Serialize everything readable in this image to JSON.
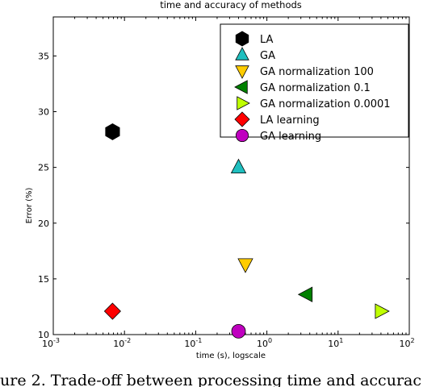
{
  "chart_data": {
    "type": "scatter",
    "title": "time and accuracy of methods",
    "xlabel": "time (s), logscale",
    "ylabel": "Error (%)",
    "xscale": "log",
    "xlim": [
      0.001,
      100
    ],
    "ylim": [
      10,
      38.5
    ],
    "grid": false,
    "legend_position": "top-right",
    "x_ticks": [
      {
        "value": 0.001,
        "base": "10",
        "exp": "-3"
      },
      {
        "value": 0.01,
        "base": "10",
        "exp": "-2"
      },
      {
        "value": 0.1,
        "base": "10",
        "exp": "-1"
      },
      {
        "value": 1,
        "base": "10",
        "exp": "0"
      },
      {
        "value": 10,
        "base": "10",
        "exp": "1"
      },
      {
        "value": 100,
        "base": "10",
        "exp": "2"
      }
    ],
    "y_ticks": [
      10,
      15,
      20,
      25,
      30,
      35
    ],
    "series": [
      {
        "name": "LA",
        "marker": "hexagon",
        "color": "#000000",
        "x": 0.0068,
        "y": 28.2
      },
      {
        "name": "GA",
        "marker": "triangle-up",
        "color": "#1fbfbf",
        "x": 0.4,
        "y": 25.0
      },
      {
        "name": "GA normalization 100",
        "marker": "triangle-down",
        "color": "#ffcc00",
        "x": 0.5,
        "y": 16.3
      },
      {
        "name": "GA normalization 0.1",
        "marker": "triangle-left",
        "color": "#008000",
        "x": 3.6,
        "y": 13.6
      },
      {
        "name": "GA normalization 0.0001",
        "marker": "triangle-right",
        "color": "#bfff00",
        "x": 40,
        "y": 12.1
      },
      {
        "name": "LA learning",
        "marker": "diamond",
        "color": "#ff0000",
        "x": 0.0068,
        "y": 12.1
      },
      {
        "name": "GA learning",
        "marker": "circle",
        "color": "#bf00bf",
        "x": 0.4,
        "y": 10.3
      }
    ]
  },
  "caption": "ure 2. Trade-off between processing time and accurac"
}
